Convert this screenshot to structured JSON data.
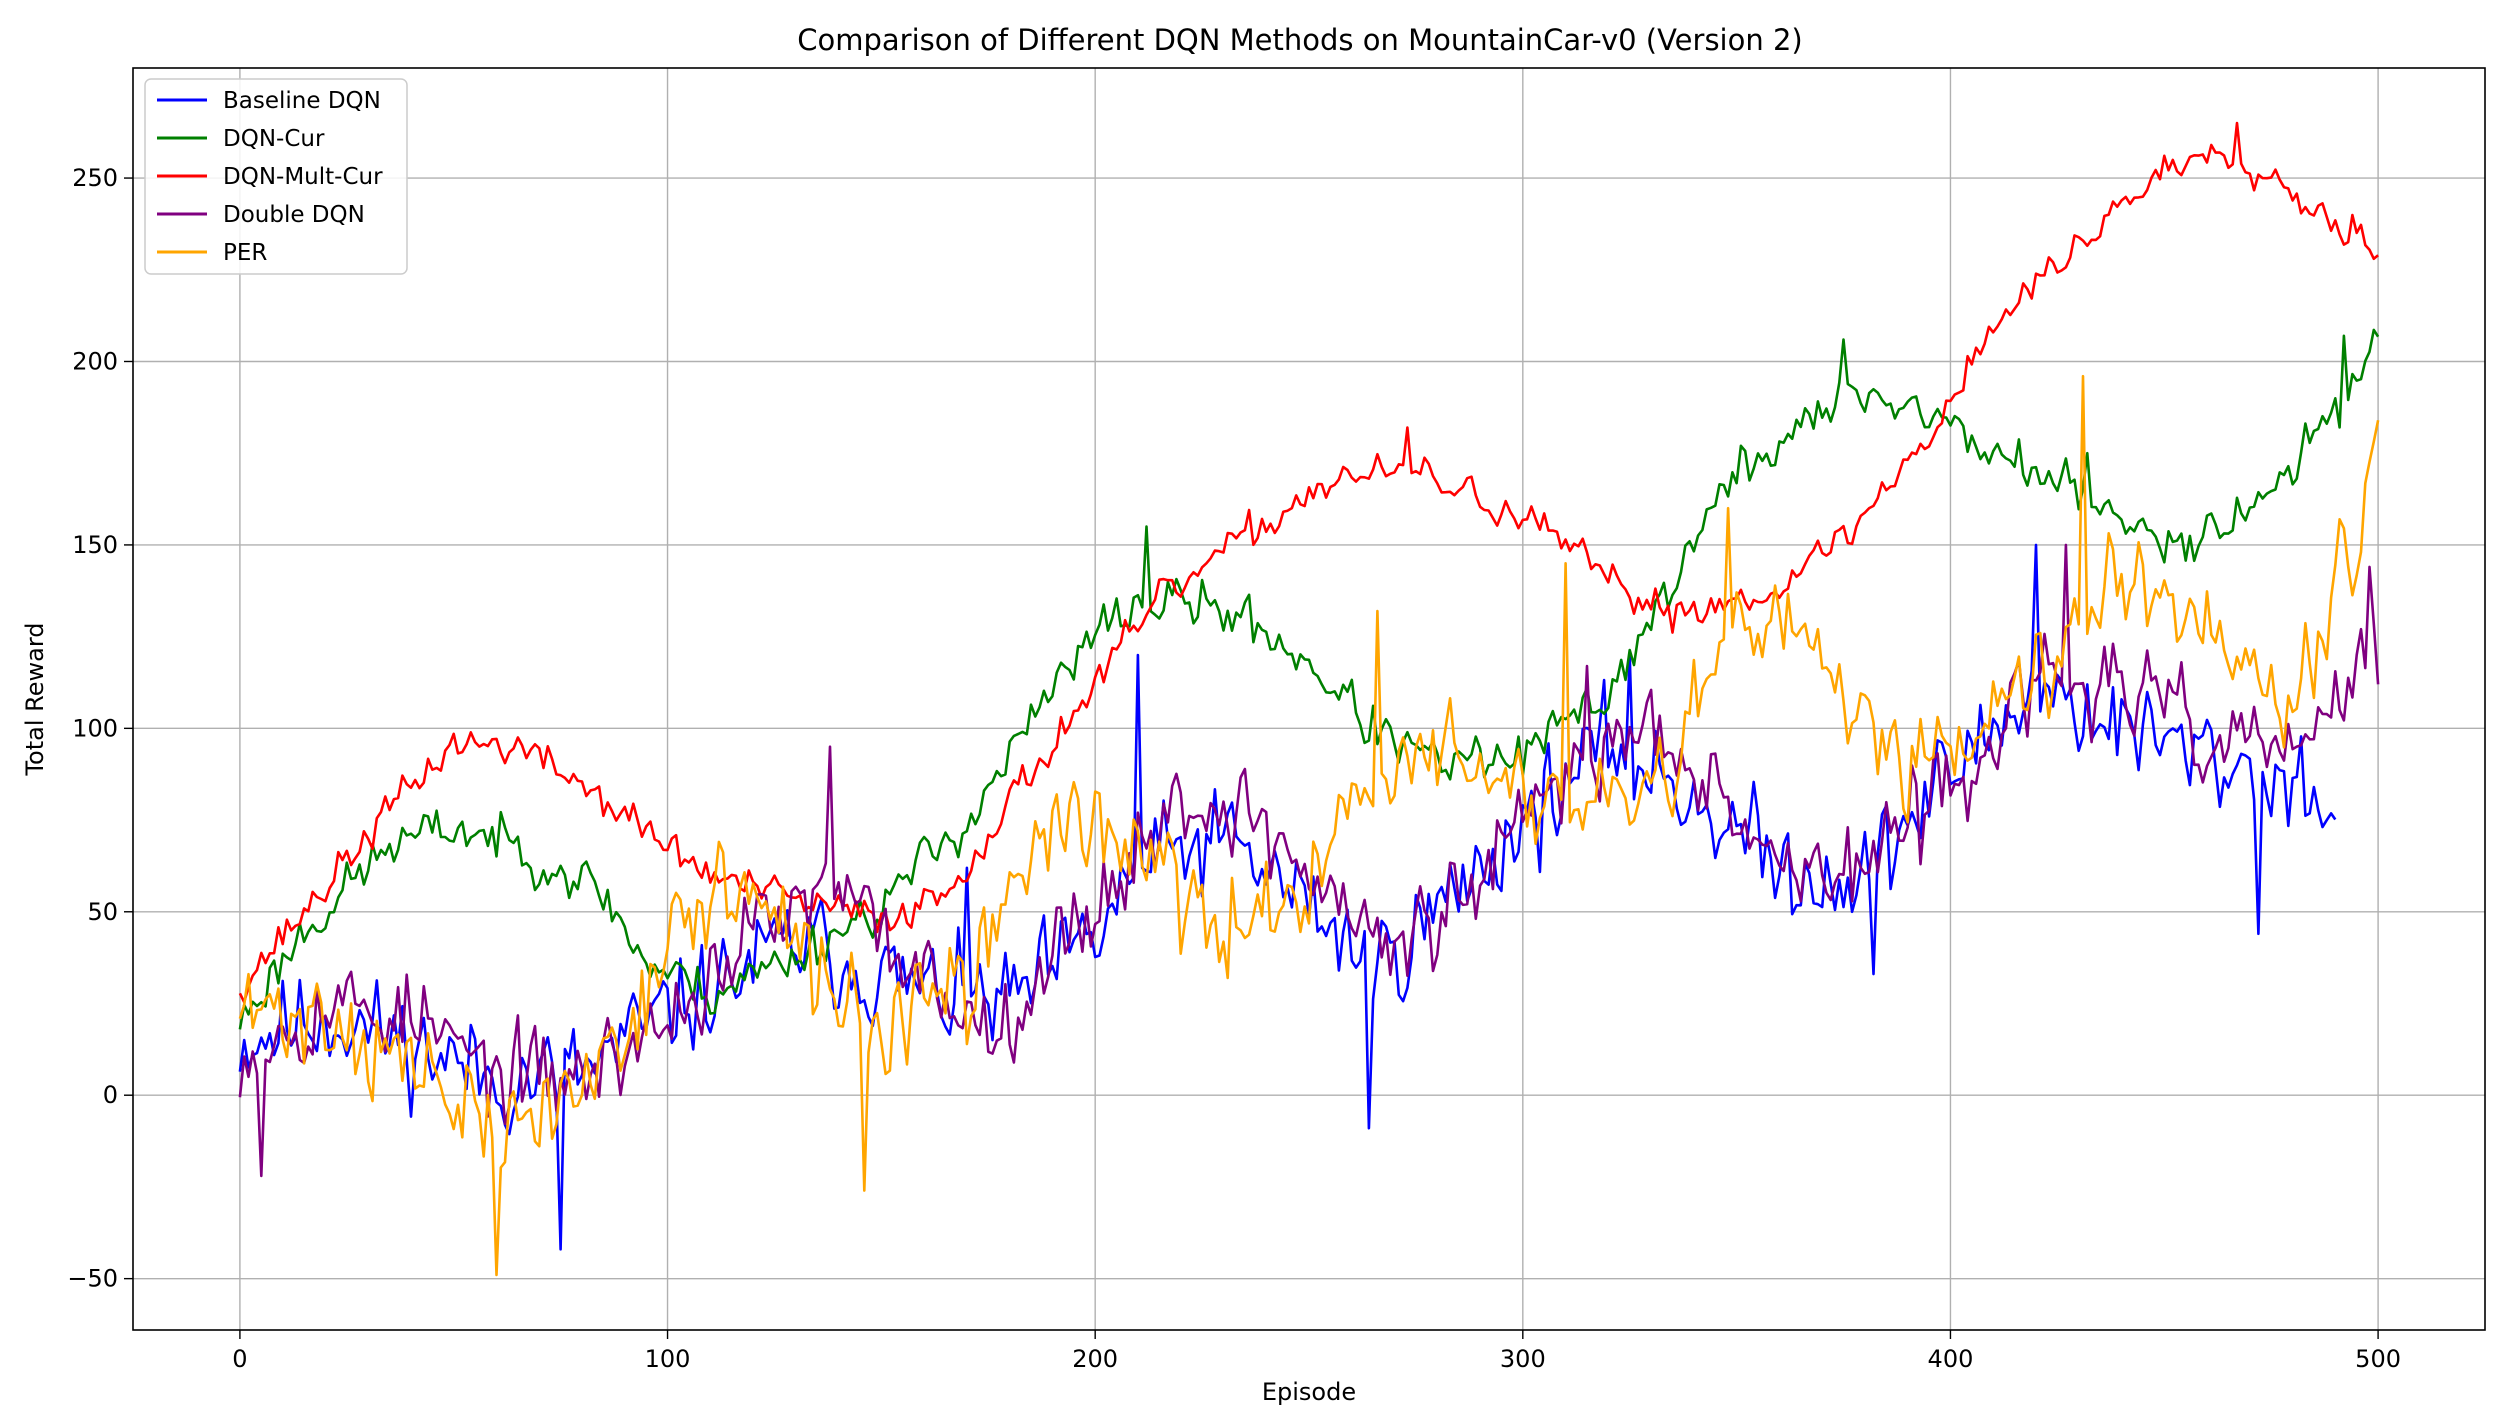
{
  "chart_data": {
    "type": "line",
    "title": "Comparison of Different DQN Methods on MountainCar-v0 (Version 2)",
    "xlabel": "Episode",
    "ylabel": "Total Reward",
    "xlim": [
      -25,
      525
    ],
    "ylim": [
      -64,
      280
    ],
    "xticks": [
      0,
      100,
      200,
      300,
      400,
      500
    ],
    "yticks": [
      -50,
      0,
      50,
      100,
      150,
      200,
      250
    ],
    "grid": true,
    "legend_position": "top-left",
    "series": [
      {
        "name": "Baseline DQN",
        "color": "#0000ff",
        "max_episode": 490,
        "noise": 17,
        "seed": 11,
        "anchors": [
          [
            0,
            15
          ],
          [
            20,
            22
          ],
          [
            40,
            14
          ],
          [
            60,
            4
          ],
          [
            80,
            6
          ],
          [
            100,
            22
          ],
          [
            130,
            42
          ],
          [
            160,
            28
          ],
          [
            180,
            25
          ],
          [
            200,
            42
          ],
          [
            210,
            62
          ],
          [
            230,
            70
          ],
          [
            250,
            52
          ],
          [
            265,
            35
          ],
          [
            280,
            50
          ],
          [
            300,
            75
          ],
          [
            320,
            95
          ],
          [
            340,
            82
          ],
          [
            360,
            62
          ],
          [
            380,
            60
          ],
          [
            400,
            88
          ],
          [
            420,
            112
          ],
          [
            440,
            100
          ],
          [
            460,
            92
          ],
          [
            480,
            86
          ],
          [
            490,
            80
          ]
        ],
        "spikes": [
          [
            75,
            -42
          ],
          [
            170,
            62
          ],
          [
            210,
            120
          ],
          [
            264,
            -9
          ],
          [
            325,
            120
          ],
          [
            382,
            33
          ],
          [
            420,
            150
          ],
          [
            472,
            44
          ],
          [
            488,
            75
          ]
        ]
      },
      {
        "name": "DQN-Cur",
        "color": "#008000",
        "max_episode": 500,
        "noise": 8,
        "seed": 23,
        "anchors": [
          [
            0,
            20
          ],
          [
            15,
            45
          ],
          [
            35,
            68
          ],
          [
            50,
            73
          ],
          [
            60,
            70
          ],
          [
            75,
            62
          ],
          [
            85,
            55
          ],
          [
            95,
            36
          ],
          [
            110,
            28
          ],
          [
            130,
            38
          ],
          [
            150,
            52
          ],
          [
            170,
            75
          ],
          [
            190,
            110
          ],
          [
            205,
            132
          ],
          [
            220,
            135
          ],
          [
            235,
            130
          ],
          [
            250,
            118
          ],
          [
            265,
            100
          ],
          [
            280,
            90
          ],
          [
            300,
            92
          ],
          [
            320,
            110
          ],
          [
            335,
            140
          ],
          [
            350,
            170
          ],
          [
            365,
            182
          ],
          [
            380,
            192
          ],
          [
            395,
            186
          ],
          [
            410,
            175
          ],
          [
            425,
            168
          ],
          [
            440,
            155
          ],
          [
            455,
            152
          ],
          [
            470,
            160
          ],
          [
            485,
            178
          ],
          [
            500,
            207
          ]
        ],
        "spikes": [
          [
            212,
            155
          ],
          [
            375,
            206
          ],
          [
            432,
            175
          ],
          [
            492,
            207
          ]
        ]
      },
      {
        "name": "DQN-Mult-Cur",
        "color": "#ff0000",
        "max_episode": 500,
        "noise": 6,
        "seed": 37,
        "anchors": [
          [
            0,
            30
          ],
          [
            15,
            50
          ],
          [
            35,
            78
          ],
          [
            50,
            96
          ],
          [
            65,
            95
          ],
          [
            80,
            85
          ],
          [
            95,
            72
          ],
          [
            110,
            60
          ],
          [
            130,
            53
          ],
          [
            150,
            48
          ],
          [
            165,
            55
          ],
          [
            185,
            88
          ],
          [
            200,
            112
          ],
          [
            215,
            135
          ],
          [
            235,
            152
          ],
          [
            255,
            168
          ],
          [
            275,
            170
          ],
          [
            295,
            160
          ],
          [
            310,
            150
          ],
          [
            322,
            138
          ],
          [
            335,
            132
          ],
          [
            350,
            135
          ],
          [
            365,
            142
          ],
          [
            380,
            158
          ],
          [
            395,
            180
          ],
          [
            410,
            210
          ],
          [
            430,
            232
          ],
          [
            445,
            248
          ],
          [
            460,
            258
          ],
          [
            470,
            255
          ],
          [
            485,
            242
          ],
          [
            500,
            232
          ]
        ],
        "spikes": [
          [
            273,
            182
          ],
          [
            467,
            265
          ],
          [
            499,
            228
          ]
        ]
      },
      {
        "name": "Double DQN",
        "color": "#800080",
        "max_episode": 500,
        "noise": 15,
        "seed": 53,
        "anchors": [
          [
            0,
            12
          ],
          [
            20,
            25
          ],
          [
            40,
            22
          ],
          [
            60,
            5
          ],
          [
            80,
            5
          ],
          [
            100,
            20
          ],
          [
            120,
            45
          ],
          [
            140,
            55
          ],
          [
            155,
            38
          ],
          [
            175,
            18
          ],
          [
            190,
            38
          ],
          [
            205,
            60
          ],
          [
            220,
            80
          ],
          [
            235,
            78
          ],
          [
            250,
            60
          ],
          [
            270,
            38
          ],
          [
            290,
            58
          ],
          [
            310,
            88
          ],
          [
            330,
            102
          ],
          [
            345,
            88
          ],
          [
            360,
            62
          ],
          [
            380,
            62
          ],
          [
            400,
            85
          ],
          [
            420,
            112
          ],
          [
            440,
            112
          ],
          [
            460,
            97
          ],
          [
            480,
            95
          ],
          [
            500,
            118
          ]
        ],
        "spikes": [
          [
            5,
            -22
          ],
          [
            138,
            95
          ],
          [
            315,
            117
          ],
          [
            427,
            150
          ],
          [
            498,
            144
          ],
          [
            500,
            112
          ]
        ]
      },
      {
        "name": "PER",
        "color": "#ffa500",
        "max_episode": 500,
        "noise": 17,
        "seed": 71,
        "anchors": [
          [
            0,
            22
          ],
          [
            20,
            22
          ],
          [
            40,
            8
          ],
          [
            60,
            -12
          ],
          [
            80,
            2
          ],
          [
            100,
            40
          ],
          [
            115,
            60
          ],
          [
            130,
            38
          ],
          [
            150,
            18
          ],
          [
            170,
            28
          ],
          [
            190,
            78
          ],
          [
            210,
            68
          ],
          [
            230,
            40
          ],
          [
            250,
            62
          ],
          [
            270,
            92
          ],
          [
            290,
            90
          ],
          [
            305,
            80
          ],
          [
            320,
            75
          ],
          [
            335,
            85
          ],
          [
            350,
            130
          ],
          [
            370,
            118
          ],
          [
            390,
            92
          ],
          [
            405,
            100
          ],
          [
            420,
            118
          ],
          [
            440,
            145
          ],
          [
            460,
            130
          ],
          [
            480,
            108
          ],
          [
            500,
            175
          ]
        ],
        "spikes": [
          [
            60,
            -49
          ],
          [
            146,
            -26
          ],
          [
            266,
            132
          ],
          [
            310,
            145
          ],
          [
            348,
            160
          ],
          [
            431,
            196
          ],
          [
            500,
            184
          ]
        ]
      }
    ]
  }
}
